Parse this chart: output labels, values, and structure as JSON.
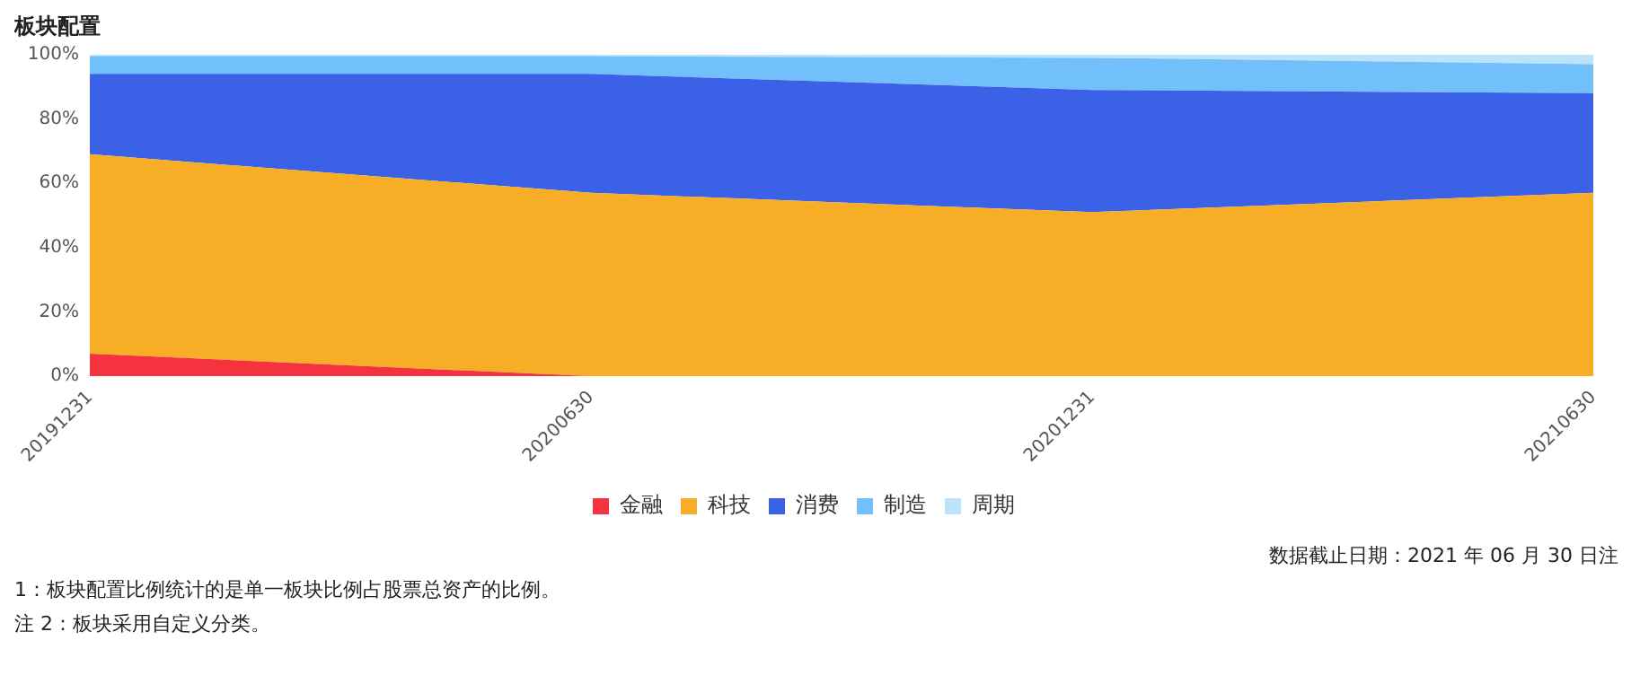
{
  "chart_data": {
    "type": "area",
    "title": "板块配置",
    "stacked": true,
    "categories": [
      "20191231",
      "20200630",
      "20201231",
      "20210630"
    ],
    "series": [
      {
        "name": "金融",
        "color": "#f5333f",
        "values": [
          7,
          0,
          0,
          0
        ]
      },
      {
        "name": "科技",
        "color": "#f7ae26",
        "values": [
          62,
          57,
          51,
          57
        ]
      },
      {
        "name": "消费",
        "color": "#3b62e6",
        "values": [
          25,
          37,
          38,
          31
        ]
      },
      {
        "name": "制造",
        "color": "#72c0fb",
        "values": [
          5.5,
          5.5,
          10,
          9
        ]
      },
      {
        "name": "周期",
        "color": "#bde3fa",
        "values": [
          0.5,
          0.5,
          1,
          3
        ]
      }
    ],
    "ylim": [
      0,
      100
    ],
    "yticks": [
      {
        "value": 0,
        "label": "0%"
      },
      {
        "value": 20,
        "label": "20%"
      },
      {
        "value": 40,
        "label": "40%"
      },
      {
        "value": 60,
        "label": "60%"
      },
      {
        "value": 80,
        "label": "80%"
      },
      {
        "value": 100,
        "label": "100%"
      }
    ],
    "grid": false,
    "legend": "bottom",
    "annotations": [
      "数据截止日期：2021 年 06 月 30 日注",
      "1：板块配置比例统计的是单一板块比例占股票总资产的比例。",
      "注 2：板块采用自定义分类。"
    ]
  }
}
